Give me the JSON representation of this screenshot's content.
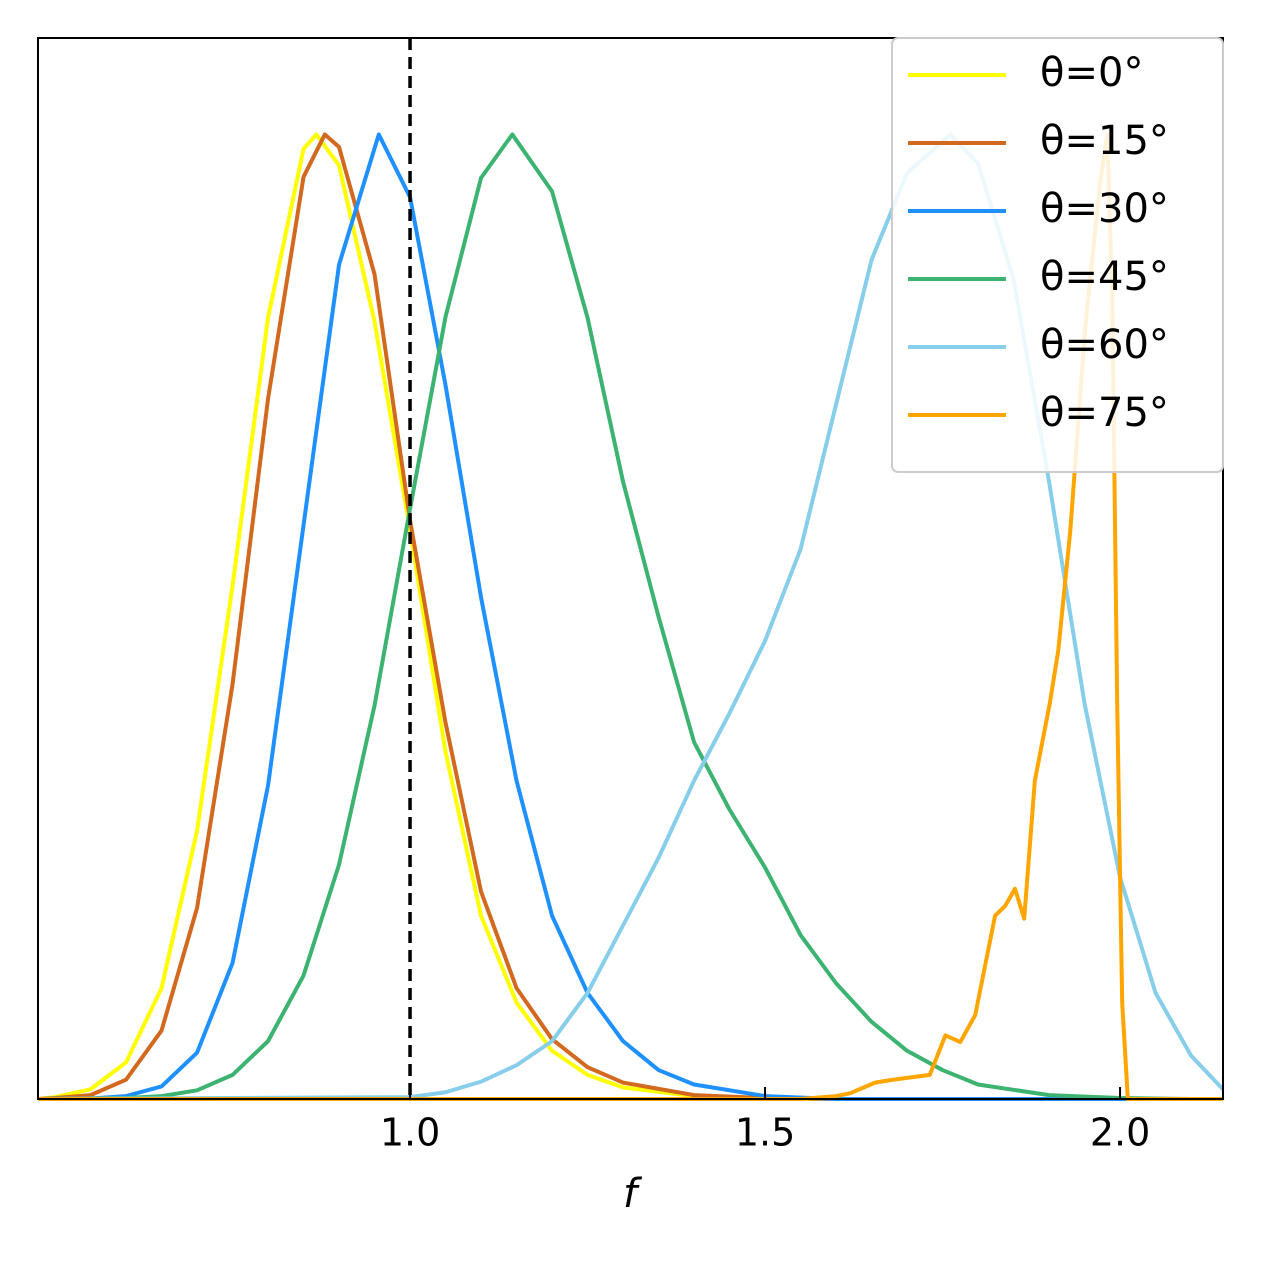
{
  "chart_data": {
    "type": "line",
    "x_label": "f",
    "xlim": [
      0.476,
      2.145
    ],
    "xticks": [
      {
        "value": 1.0,
        "label": "1.0"
      },
      {
        "value": 1.5,
        "label": "1.5"
      },
      {
        "value": 2.0,
        "label": "2.0"
      }
    ],
    "ylim": [
      0,
      1.1
    ],
    "vline": 1.0,
    "legend": "upper right",
    "series": [
      {
        "name": "θ=0°",
        "color": "#ffff00",
        "x": [
          0.476,
          0.5,
          0.55,
          0.6,
          0.65,
          0.7,
          0.75,
          0.8,
          0.85,
          0.868,
          0.9,
          0.95,
          1.0,
          1.05,
          1.1,
          1.15,
          1.2,
          1.25,
          1.3,
          1.4,
          1.5,
          2.145
        ],
        "values": [
          0,
          0.002,
          0.01,
          0.038,
          0.115,
          0.278,
          0.532,
          0.81,
          0.985,
          1.0,
          0.968,
          0.806,
          0.59,
          0.36,
          0.19,
          0.1,
          0.05,
          0.025,
          0.012,
          0.003,
          0,
          0
        ]
      },
      {
        "name": "θ=15°",
        "color": "#d2691e",
        "x": [
          0.476,
          0.5,
          0.55,
          0.6,
          0.65,
          0.7,
          0.75,
          0.8,
          0.85,
          0.88,
          0.9,
          0.95,
          1.0,
          1.05,
          1.1,
          1.15,
          1.2,
          1.25,
          1.3,
          1.4,
          1.5,
          1.6,
          2.145
        ],
        "values": [
          0,
          0.001,
          0.004,
          0.02,
          0.071,
          0.198,
          0.43,
          0.726,
          0.956,
          1.0,
          0.987,
          0.855,
          0.6,
          0.39,
          0.215,
          0.115,
          0.062,
          0.033,
          0.017,
          0.004,
          0.001,
          0,
          0
        ]
      },
      {
        "name": "θ=30°",
        "color": "#1e90ff",
        "x": [
          0.476,
          0.55,
          0.6,
          0.65,
          0.7,
          0.75,
          0.8,
          0.85,
          0.9,
          0.956,
          1.0,
          1.05,
          1.1,
          1.15,
          1.2,
          1.25,
          1.3,
          1.35,
          1.4,
          1.5,
          1.6,
          2.145
        ],
        "values": [
          0,
          0.0005,
          0.003,
          0.013,
          0.048,
          0.141,
          0.325,
          0.595,
          0.865,
          1.0,
          0.935,
          0.74,
          0.52,
          0.33,
          0.19,
          0.11,
          0.06,
          0.03,
          0.015,
          0.003,
          0,
          0
        ]
      },
      {
        "name": "θ=45°",
        "color": "#3cb371",
        "x": [
          0.476,
          0.6,
          0.65,
          0.7,
          0.75,
          0.8,
          0.85,
          0.9,
          0.95,
          1.0,
          1.05,
          1.1,
          1.144,
          1.2,
          1.25,
          1.3,
          1.35,
          1.4,
          1.45,
          1.5,
          1.55,
          1.6,
          1.65,
          1.7,
          1.75,
          1.8,
          1.9,
          2.0,
          2.1,
          2.145
        ],
        "values": [
          0,
          0.001,
          0.003,
          0.009,
          0.025,
          0.06,
          0.128,
          0.243,
          0.408,
          0.612,
          0.811,
          0.955,
          1.0,
          0.941,
          0.81,
          0.64,
          0.5,
          0.37,
          0.3,
          0.24,
          0.17,
          0.12,
          0.08,
          0.05,
          0.03,
          0.015,
          0.004,
          0.001,
          0,
          0
        ]
      },
      {
        "name": "θ=60°",
        "color": "#87ceeb",
        "x": [
          0.476,
          1.0,
          1.05,
          1.1,
          1.15,
          1.2,
          1.25,
          1.3,
          1.35,
          1.4,
          1.45,
          1.5,
          1.55,
          1.6,
          1.65,
          1.7,
          1.761,
          1.8,
          1.85,
          1.9,
          1.95,
          2.0,
          2.05,
          2.1,
          2.145
        ],
        "values": [
          0,
          0.002,
          0.007,
          0.018,
          0.035,
          0.06,
          0.11,
          0.18,
          0.25,
          0.33,
          0.4,
          0.475,
          0.57,
          0.72,
          0.87,
          0.96,
          1.0,
          0.97,
          0.85,
          0.64,
          0.41,
          0.23,
          0.11,
          0.045,
          0.01
        ]
      },
      {
        "name": "θ=75°",
        "color": "#ffa500",
        "x": [
          0.476,
          1.55,
          1.6,
          1.62,
          1.655,
          1.68,
          1.732,
          1.754,
          1.775,
          1.796,
          1.824,
          1.838,
          1.852,
          1.865,
          1.88,
          1.901,
          1.913,
          1.93,
          1.951,
          1.972,
          1.982,
          1.989,
          1.996,
          2.003,
          2.011,
          2.145
        ],
        "values": [
          0,
          0,
          0.003,
          0.006,
          0.017,
          0.02,
          0.025,
          0.066,
          0.059,
          0.087,
          0.19,
          0.2,
          0.218,
          0.187,
          0.33,
          0.41,
          0.465,
          0.59,
          0.8,
          0.95,
          1.0,
          0.83,
          0.41,
          0.1,
          0,
          0
        ]
      }
    ]
  }
}
